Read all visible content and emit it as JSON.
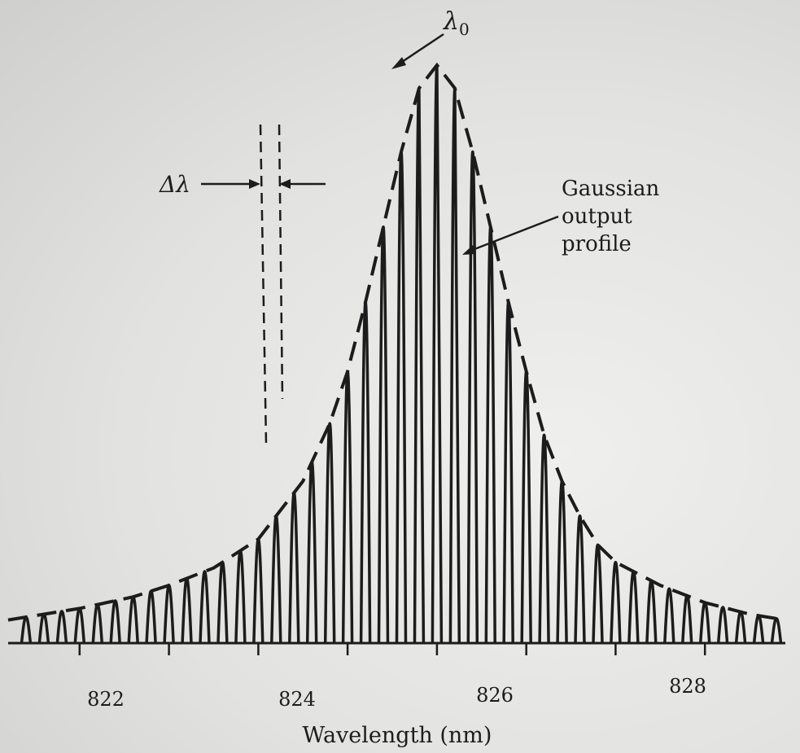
{
  "chart_data": {
    "type": "line",
    "title": "",
    "xlabel": "Wavelength (nm)",
    "ylabel": "",
    "xlim": [
      820.2,
      828.9
    ],
    "ylim": [
      0,
      1
    ],
    "x_ticks": [
      822,
      824,
      826,
      828
    ],
    "x_tick_labels": [
      "822",
      "824",
      "826",
      "828"
    ],
    "mode_spacing_nm": 0.2,
    "center_wavelength_nm": 825.0,
    "series": [
      {
        "name": "Gaussian output profile",
        "style": "dashed",
        "x": [
          820.2,
          821.0,
          821.6,
          822.0,
          822.5,
          823.0,
          823.5,
          823.8,
          824.0,
          824.2,
          824.4,
          824.6,
          824.8,
          825.0,
          825.2,
          825.4,
          825.6,
          825.8,
          826.0,
          826.2,
          826.4,
          826.6,
          826.8,
          827.0,
          827.5,
          828.0,
          828.5,
          828.9
        ],
        "y": [
          0.04,
          0.06,
          0.08,
          0.1,
          0.13,
          0.18,
          0.28,
          0.38,
          0.47,
          0.59,
          0.72,
          0.85,
          0.96,
          1.0,
          0.96,
          0.85,
          0.72,
          0.59,
          0.47,
          0.36,
          0.28,
          0.22,
          0.17,
          0.14,
          0.1,
          0.07,
          0.05,
          0.04
        ]
      }
    ],
    "annotations": [
      {
        "text": "λ",
        "sub": "0",
        "target": "peak"
      },
      {
        "text": "Δλ",
        "target": "mode spacing"
      },
      {
        "text": "Gaussian",
        "line2": "output",
        "line3": "profile",
        "target": "dashed envelope"
      }
    ],
    "colors": {
      "ink": "#1c1c1c",
      "paper": "#e4e4e2"
    }
  }
}
